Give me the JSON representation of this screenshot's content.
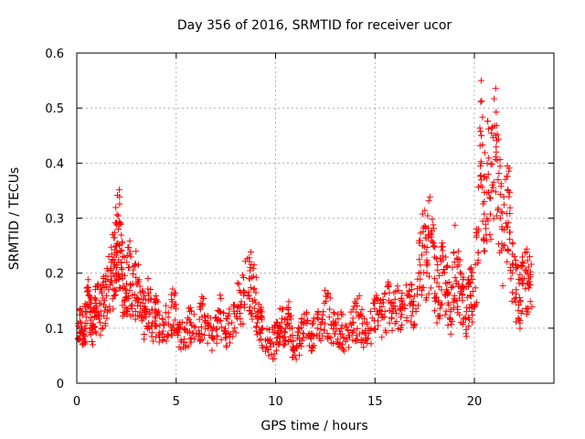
{
  "chart_data": {
    "type": "scatter",
    "title": "Day 356 of 2016, SRMTID for receiver ucor",
    "xlabel": "GPS time / hours",
    "ylabel": "SRMTID / TECUs",
    "xlim": [
      0,
      24
    ],
    "ylim": [
      0,
      0.6
    ],
    "xticks": [
      0,
      5,
      10,
      15,
      20
    ],
    "yticks": [
      0,
      0.1,
      0.2,
      0.3,
      0.4,
      0.5,
      0.6
    ],
    "xtick_labels": [
      "0",
      "5",
      "10",
      "15",
      "20"
    ],
    "ytick_labels": [
      "0",
      "0.1",
      "0.2",
      "0.3",
      "0.4",
      "0.5",
      "0.6"
    ],
    "marker": "+",
    "color": "#ff0000",
    "grid": true,
    "series": [
      {
        "name": "SRMTID",
        "points_note": "dense scatter of per-satellite values; representative samples",
        "x": [
          0.05,
          0.2,
          0.35,
          0.5,
          0.6,
          0.75,
          0.9,
          1.0,
          1.2,
          1.4,
          1.6,
          1.8,
          1.9,
          2.0,
          2.1,
          2.2,
          2.3,
          2.45,
          2.6,
          2.8,
          3.0,
          3.2,
          3.4,
          3.6,
          3.8,
          4.0,
          4.3,
          4.6,
          4.9,
          5.1,
          5.4,
          5.7,
          6.0,
          6.3,
          6.6,
          6.9,
          7.2,
          7.5,
          7.8,
          8.1,
          8.4,
          8.7,
          8.9,
          9.1,
          9.3,
          9.6,
          9.9,
          10.1,
          10.3,
          10.5,
          10.7,
          10.9,
          11.2,
          11.5,
          11.8,
          12.1,
          12.4,
          12.7,
          13.0,
          13.3,
          13.6,
          13.9,
          14.2,
          14.5,
          14.8,
          15.1,
          15.4,
          15.7,
          16.0,
          16.3,
          16.6,
          16.9,
          17.2,
          17.4,
          17.6,
          17.8,
          18.0,
          18.2,
          18.4,
          18.6,
          18.8,
          19.0,
          19.2,
          19.4,
          19.6,
          19.8,
          20.0,
          20.2,
          20.35,
          20.5,
          20.7,
          20.9,
          21.1,
          21.3,
          21.5,
          21.7,
          21.9,
          22.1,
          22.3,
          22.5,
          22.7
        ],
        "y": [
          0.08,
          0.11,
          0.09,
          0.13,
          0.16,
          0.1,
          0.12,
          0.14,
          0.13,
          0.15,
          0.17,
          0.2,
          0.22,
          0.25,
          0.28,
          0.24,
          0.19,
          0.17,
          0.21,
          0.16,
          0.18,
          0.14,
          0.12,
          0.15,
          0.11,
          0.13,
          0.09,
          0.12,
          0.14,
          0.1,
          0.08,
          0.11,
          0.09,
          0.12,
          0.1,
          0.08,
          0.13,
          0.09,
          0.11,
          0.14,
          0.16,
          0.19,
          0.17,
          0.13,
          0.1,
          0.08,
          0.07,
          0.09,
          0.11,
          0.1,
          0.12,
          0.06,
          0.08,
          0.11,
          0.09,
          0.1,
          0.13,
          0.12,
          0.09,
          0.1,
          0.08,
          0.11,
          0.12,
          0.09,
          0.1,
          0.13,
          0.12,
          0.15,
          0.14,
          0.12,
          0.16,
          0.13,
          0.2,
          0.25,
          0.22,
          0.27,
          0.19,
          0.15,
          0.2,
          0.17,
          0.13,
          0.22,
          0.18,
          0.15,
          0.13,
          0.16,
          0.14,
          0.28,
          0.45,
          0.33,
          0.38,
          0.36,
          0.42,
          0.3,
          0.25,
          0.35,
          0.2,
          0.17,
          0.15,
          0.19,
          0.18
        ]
      }
    ]
  }
}
